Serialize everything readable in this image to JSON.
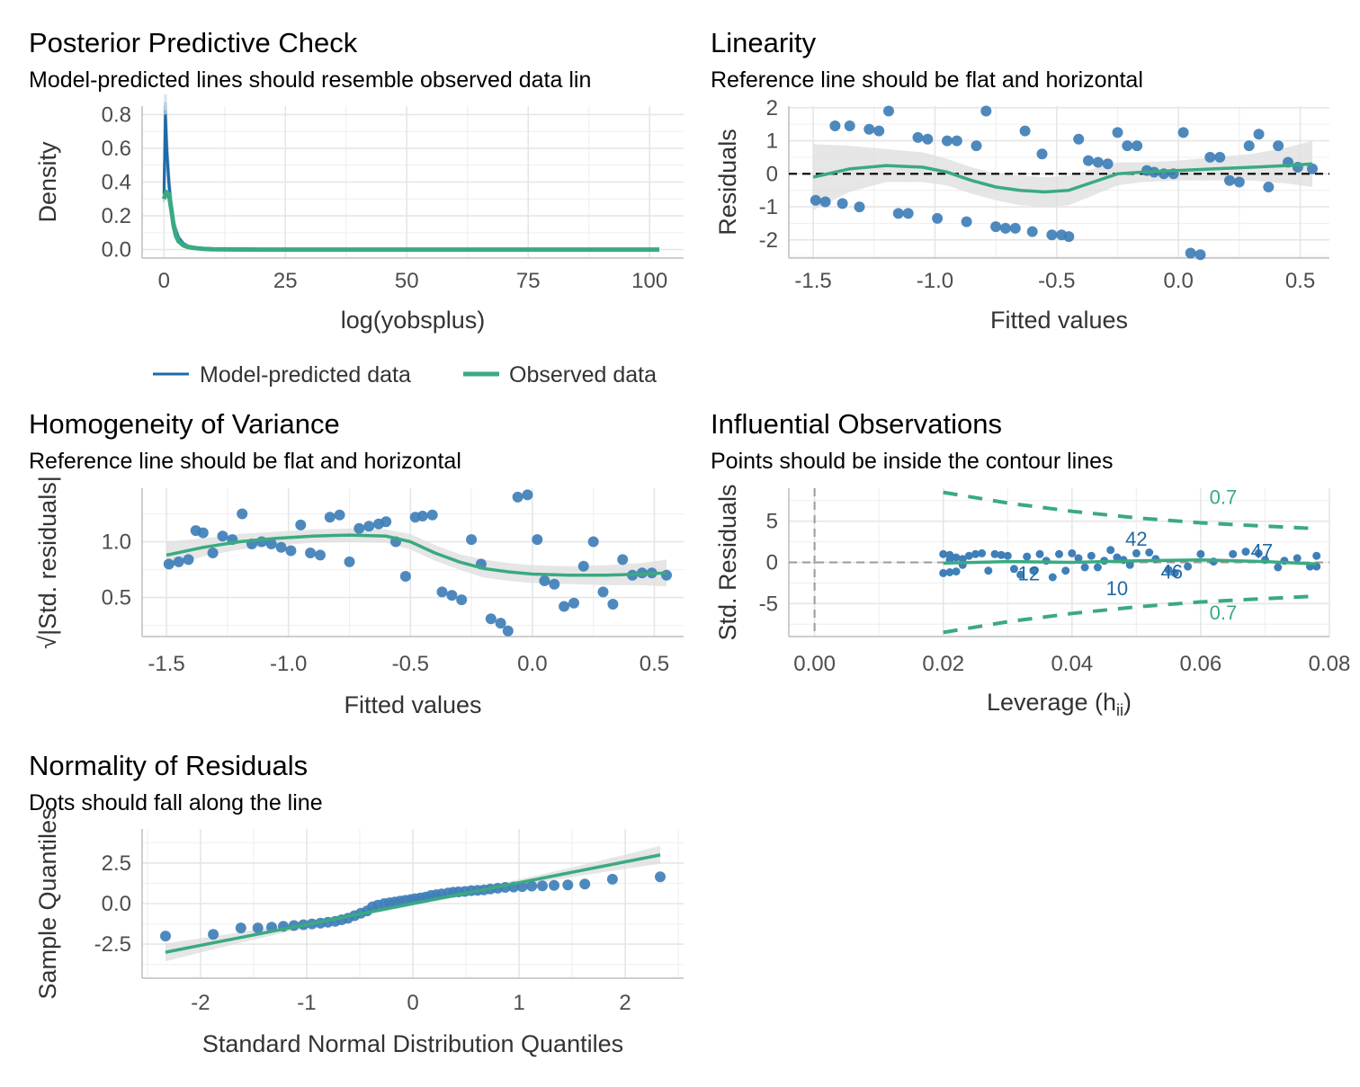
{
  "colors": {
    "blue": "#1f6aa5",
    "point": "#3f7fb8",
    "green": "#3aaa80",
    "band": "#dedede",
    "grid": "#e6e6e6",
    "axis": "#bdbdbd"
  },
  "chart_data": [
    {
      "id": "ppc",
      "type": "line",
      "title": "Posterior Predictive Check",
      "subtitle": "Model-predicted lines should resemble observed data lin",
      "xlabel": "log(yobsplus)",
      "ylabel": "Density",
      "xlim": [
        -4.5,
        107
      ],
      "ylim": [
        -0.05,
        0.85
      ],
      "xticks": [
        0,
        25,
        50,
        75,
        100
      ],
      "yticks": [
        0.0,
        0.2,
        0.4,
        0.6,
        0.8
      ],
      "xtick_labels": [
        "0",
        "25",
        "50",
        "75",
        "100"
      ],
      "ytick_labels": [
        "0.0",
        "0.2",
        "0.4",
        "0.6",
        "0.8"
      ],
      "grid": true,
      "legend": {
        "position": "bottom",
        "items": [
          {
            "label": "Model-predicted data",
            "color": "#1f6aa5"
          },
          {
            "label": "Observed data",
            "color": "#3aaa80"
          }
        ]
      },
      "series": [
        {
          "name": "Model-predicted data",
          "x": [
            0,
            0.3,
            0.6,
            1,
            1.5,
            2,
            3,
            4,
            5,
            7,
            10,
            15,
            20,
            40,
            60,
            80,
            102
          ],
          "y": [
            0.33,
            0.8,
            0.58,
            0.4,
            0.25,
            0.15,
            0.07,
            0.035,
            0.02,
            0.01,
            0.005,
            0.003,
            0.001,
            0,
            0,
            0,
            0
          ]
        },
        {
          "name": "Observed data",
          "x": [
            0,
            0.5,
            1,
            1.5,
            2,
            2.5,
            3,
            4,
            5,
            6,
            8,
            10,
            20,
            40,
            60,
            80,
            102
          ],
          "y": [
            0.3,
            0.34,
            0.33,
            0.24,
            0.14,
            0.08,
            0.05,
            0.025,
            0.015,
            0.01,
            0.005,
            0.002,
            0,
            0,
            0,
            0,
            0
          ]
        }
      ]
    },
    {
      "id": "lin",
      "type": "scatter",
      "title": "Linearity",
      "subtitle": "Reference line should be flat and horizontal",
      "xlabel": "Fitted values",
      "ylabel": "Residuals",
      "xlim": [
        -1.6,
        0.62
      ],
      "ylim": [
        -2.55,
        2.05
      ],
      "xticks": [
        -1.5,
        -1.0,
        -0.5,
        0.0,
        0.5
      ],
      "yticks": [
        -2,
        -1,
        0,
        1,
        2
      ],
      "xtick_labels": [
        "-1.5",
        "-1.0",
        "-0.5",
        "0.0",
        "0.5"
      ],
      "ytick_labels": [
        "-2",
        "-1",
        "0",
        "1",
        "2"
      ],
      "grid": true,
      "reference_line_y": 0,
      "points": {
        "x": [
          -1.49,
          -1.45,
          -1.41,
          -1.38,
          -1.35,
          -1.31,
          -1.27,
          -1.23,
          -1.19,
          -1.15,
          -1.11,
          -1.07,
          -1.03,
          -0.99,
          -0.95,
          -0.91,
          -0.87,
          -0.83,
          -0.79,
          -0.75,
          -0.71,
          -0.67,
          -0.63,
          -0.6,
          -0.56,
          -0.52,
          -0.48,
          -0.45,
          -0.41,
          -0.37,
          -0.33,
          -0.29,
          -0.25,
          -0.21,
          -0.17,
          -0.13,
          -0.1,
          -0.06,
          -0.02,
          0.02,
          0.05,
          0.09,
          0.13,
          0.17,
          0.21,
          0.25,
          0.29,
          0.33,
          0.37,
          0.41,
          0.45,
          0.49,
          0.55
        ],
        "y": [
          -0.8,
          -0.85,
          1.45,
          -0.9,
          1.45,
          -1.0,
          1.35,
          1.3,
          1.9,
          -1.2,
          -1.2,
          1.1,
          1.05,
          -1.35,
          1.0,
          1.0,
          -1.45,
          0.85,
          1.9,
          -1.6,
          -1.65,
          -1.65,
          1.3,
          -1.75,
          0.6,
          -1.85,
          -1.85,
          -1.9,
          1.05,
          0.4,
          0.35,
          0.3,
          1.25,
          0.85,
          0.85,
          0.1,
          0.05,
          0.0,
          0.0,
          1.25,
          -2.4,
          -2.45,
          0.5,
          0.5,
          -0.2,
          -0.25,
          0.85,
          1.2,
          -0.4,
          0.85,
          0.35,
          0.2,
          0.15
        ]
      },
      "smooth": {
        "x": [
          -1.5,
          -1.35,
          -1.2,
          -1.05,
          -0.95,
          -0.85,
          -0.75,
          -0.65,
          -0.55,
          -0.45,
          -0.35,
          -0.25,
          -0.15,
          0.0,
          0.15,
          0.3,
          0.45,
          0.55
        ],
        "y": [
          -0.1,
          0.15,
          0.25,
          0.2,
          0.05,
          -0.2,
          -0.4,
          -0.5,
          -0.55,
          -0.5,
          -0.25,
          0.0,
          0.05,
          0.1,
          0.15,
          0.2,
          0.25,
          0.3
        ],
        "band_halfwidth": [
          1.0,
          0.7,
          0.5,
          0.45,
          0.4,
          0.4,
          0.4,
          0.45,
          0.45,
          0.45,
          0.4,
          0.35,
          0.3,
          0.3,
          0.35,
          0.4,
          0.55,
          0.7
        ]
      }
    },
    {
      "id": "hom",
      "type": "scatter",
      "title": "Homogeneity of Variance",
      "subtitle": "Reference line should be flat and horizontal",
      "xlabel": "Fitted values",
      "ylabel": "√|Std. residuals|",
      "xlim": [
        -1.6,
        0.62
      ],
      "ylim": [
        0.15,
        1.48
      ],
      "xticks": [
        -1.5,
        -1.0,
        -0.5,
        0.0,
        0.5
      ],
      "yticks": [
        0.5,
        1.0
      ],
      "xtick_labels": [
        "-1.5",
        "-1.0",
        "-0.5",
        "0.0",
        "0.5"
      ],
      "ytick_labels": [
        "0.5",
        "1.0"
      ],
      "grid": true,
      "points": {
        "x": [
          -1.49,
          -1.45,
          -1.41,
          -1.38,
          -1.35,
          -1.31,
          -1.27,
          -1.23,
          -1.19,
          -1.15,
          -1.11,
          -1.07,
          -1.03,
          -0.99,
          -0.95,
          -0.91,
          -0.87,
          -0.83,
          -0.79,
          -0.75,
          -0.71,
          -0.67,
          -0.63,
          -0.6,
          -0.56,
          -0.52,
          -0.48,
          -0.45,
          -0.41,
          -0.37,
          -0.33,
          -0.29,
          -0.25,
          -0.21,
          -0.17,
          -0.13,
          -0.1,
          -0.06,
          -0.02,
          0.02,
          0.05,
          0.09,
          0.13,
          0.17,
          0.21,
          0.25,
          0.29,
          0.33,
          0.37,
          0.41,
          0.45,
          0.49,
          0.55
        ],
        "y": [
          0.8,
          0.82,
          0.84,
          1.1,
          1.08,
          0.9,
          1.05,
          1.02,
          1.25,
          0.98,
          1.0,
          0.98,
          0.95,
          0.92,
          1.15,
          0.9,
          0.88,
          1.22,
          1.24,
          0.82,
          1.12,
          1.14,
          1.16,
          1.18,
          1.0,
          0.69,
          1.22,
          1.23,
          1.24,
          0.55,
          0.52,
          0.48,
          1.02,
          0.8,
          0.31,
          0.27,
          0.2,
          1.4,
          1.42,
          1.02,
          0.65,
          0.62,
          0.42,
          0.45,
          0.78,
          1.0,
          0.55,
          0.44,
          0.84,
          0.7,
          0.72,
          0.72,
          0.7
        ],
        "x_note": "fitted"
      },
      "smooth": {
        "x": [
          -1.5,
          -1.35,
          -1.2,
          -1.05,
          -0.9,
          -0.75,
          -0.6,
          -0.5,
          -0.4,
          -0.3,
          -0.2,
          -0.1,
          0.0,
          0.15,
          0.3,
          0.45,
          0.55
        ],
        "y": [
          0.88,
          0.95,
          1.0,
          1.03,
          1.05,
          1.06,
          1.05,
          1.0,
          0.9,
          0.82,
          0.76,
          0.73,
          0.71,
          0.7,
          0.7,
          0.71,
          0.72
        ],
        "band_halfwidth": [
          0.12,
          0.08,
          0.07,
          0.06,
          0.06,
          0.06,
          0.06,
          0.07,
          0.07,
          0.07,
          0.08,
          0.08,
          0.08,
          0.08,
          0.09,
          0.1,
          0.12
        ]
      }
    },
    {
      "id": "inf",
      "type": "scatter",
      "title": "Influential Observations",
      "subtitle": "Points should be inside the contour lines",
      "xlabel": "Leverage (h",
      "xlabel_sub": "ii",
      "xlabel_end": ")",
      "ylabel": "Std. Residuals",
      "xlim": [
        -0.004,
        0.08
      ],
      "ylim": [
        -9,
        9
      ],
      "xticks": [
        0.0,
        0.02,
        0.04,
        0.06,
        0.08
      ],
      "yticks": [
        -5,
        0,
        5
      ],
      "xtick_labels": [
        "0.00",
        "0.02",
        "0.04",
        "0.06",
        "0.08"
      ],
      "ytick_labels": [
        "-5",
        "0",
        "5"
      ],
      "grid": true,
      "contour_label": "0.7",
      "contour_upper": {
        "x": [
          0.02,
          0.03,
          0.04,
          0.05,
          0.06,
          0.07,
          0.078
        ],
        "y": [
          8.5,
          7.2,
          6.2,
          5.4,
          4.8,
          4.4,
          4.1
        ]
      },
      "contour_lower": {
        "x": [
          0.02,
          0.03,
          0.04,
          0.05,
          0.06,
          0.07,
          0.078
        ],
        "y": [
          -8.5,
          -7.2,
          -6.2,
          -5.4,
          -4.8,
          -4.4,
          -4.1
        ]
      },
      "points": {
        "x": [
          0.02,
          0.02,
          0.021,
          0.021,
          0.022,
          0.022,
          0.023,
          0.024,
          0.025,
          0.026,
          0.027,
          0.028,
          0.029,
          0.03,
          0.031,
          0.032,
          0.033,
          0.034,
          0.035,
          0.036,
          0.037,
          0.038,
          0.039,
          0.04,
          0.041,
          0.042,
          0.043,
          0.044,
          0.045,
          0.046,
          0.047,
          0.048,
          0.049,
          0.05,
          0.052,
          0.053,
          0.055,
          0.056,
          0.058,
          0.06,
          0.062,
          0.065,
          0.067,
          0.069,
          0.07,
          0.072,
          0.073,
          0.075,
          0.077,
          0.078,
          0.078,
          0.021,
          0.023
        ],
        "y": [
          1.0,
          -1.3,
          0.9,
          -1.2,
          0.6,
          -1.1,
          0.4,
          0.8,
          1.0,
          1.1,
          -1.0,
          1.0,
          0.9,
          0.8,
          -0.8,
          -1.5,
          0.7,
          -1.0,
          1.0,
          0.2,
          -1.8,
          1.0,
          -1.0,
          1.1,
          0.5,
          -0.6,
          0.8,
          -0.6,
          0.2,
          1.5,
          0.6,
          0.3,
          -0.3,
          1.1,
          1.2,
          0.4,
          -0.9,
          -1.3,
          -0.5,
          1.0,
          0.1,
          1.0,
          1.3,
          1.1,
          0.3,
          -0.6,
          0.2,
          0.5,
          -0.5,
          0.8,
          -0.5,
          0.3,
          -0.3
        ]
      },
      "labels": [
        {
          "text": "42",
          "x": 0.05,
          "y": 2.9
        },
        {
          "text": "47",
          "x": 0.0695,
          "y": 1.4
        },
        {
          "text": "12",
          "x": 0.0333,
          "y": -1.3
        },
        {
          "text": "46",
          "x": 0.0555,
          "y": -1.1
        },
        {
          "text": "10",
          "x": 0.047,
          "y": -3.1
        }
      ],
      "smooth": {
        "x": [
          0.02,
          0.03,
          0.04,
          0.05,
          0.06,
          0.07,
          0.078
        ],
        "y": [
          -0.1,
          0.1,
          0.0,
          0.2,
          0.3,
          0.1,
          -0.2
        ]
      }
    },
    {
      "id": "qq",
      "type": "scatter",
      "title": "Normality of Residuals",
      "subtitle": "Dots should fall along the line",
      "xlabel": "Standard Normal Distribution Quantiles",
      "ylabel": "Sample Quantiles",
      "xlim": [
        -2.55,
        2.55
      ],
      "ylim": [
        -4.6,
        4.6
      ],
      "xticks": [
        -2,
        -1,
        0,
        1,
        2
      ],
      "yticks": [
        -2.5,
        0.0,
        2.5
      ],
      "xtick_labels": [
        "-2",
        "-1",
        "0",
        "1",
        "2"
      ],
      "ytick_labels": [
        "-2.5",
        "0.0",
        "2.5"
      ],
      "grid": true,
      "points": {
        "x": [
          -2.33,
          -1.88,
          -1.62,
          -1.46,
          -1.33,
          -1.22,
          -1.12,
          -1.03,
          -0.95,
          -0.87,
          -0.8,
          -0.73,
          -0.67,
          -0.61,
          -0.55,
          -0.49,
          -0.43,
          -0.38,
          -0.33,
          -0.27,
          -0.22,
          -0.17,
          -0.12,
          -0.07,
          -0.02,
          0.02,
          0.07,
          0.12,
          0.17,
          0.22,
          0.27,
          0.33,
          0.38,
          0.43,
          0.49,
          0.55,
          0.61,
          0.67,
          0.73,
          0.8,
          0.87,
          0.95,
          1.03,
          1.12,
          1.22,
          1.33,
          1.46,
          1.62,
          1.88,
          2.33
        ],
        "y": [
          -2.0,
          -1.9,
          -1.5,
          -1.5,
          -1.45,
          -1.4,
          -1.35,
          -1.3,
          -1.25,
          -1.2,
          -1.15,
          -1.1,
          -1.0,
          -0.9,
          -0.75,
          -0.6,
          -0.45,
          -0.2,
          -0.1,
          0.0,
          0.05,
          0.1,
          0.15,
          0.2,
          0.25,
          0.3,
          0.35,
          0.4,
          0.5,
          0.55,
          0.6,
          0.65,
          0.7,
          0.72,
          0.75,
          0.8,
          0.82,
          0.85,
          0.9,
          0.95,
          1.0,
          1.02,
          1.05,
          1.08,
          1.1,
          1.12,
          1.15,
          1.2,
          1.5,
          1.65
        ]
      },
      "line": {
        "x": [
          -2.33,
          2.33
        ],
        "y": [
          -3.0,
          3.0
        ],
        "band_halfwidth_ends": 0.55,
        "band_halfwidth_mid": 0.12
      }
    }
  ]
}
